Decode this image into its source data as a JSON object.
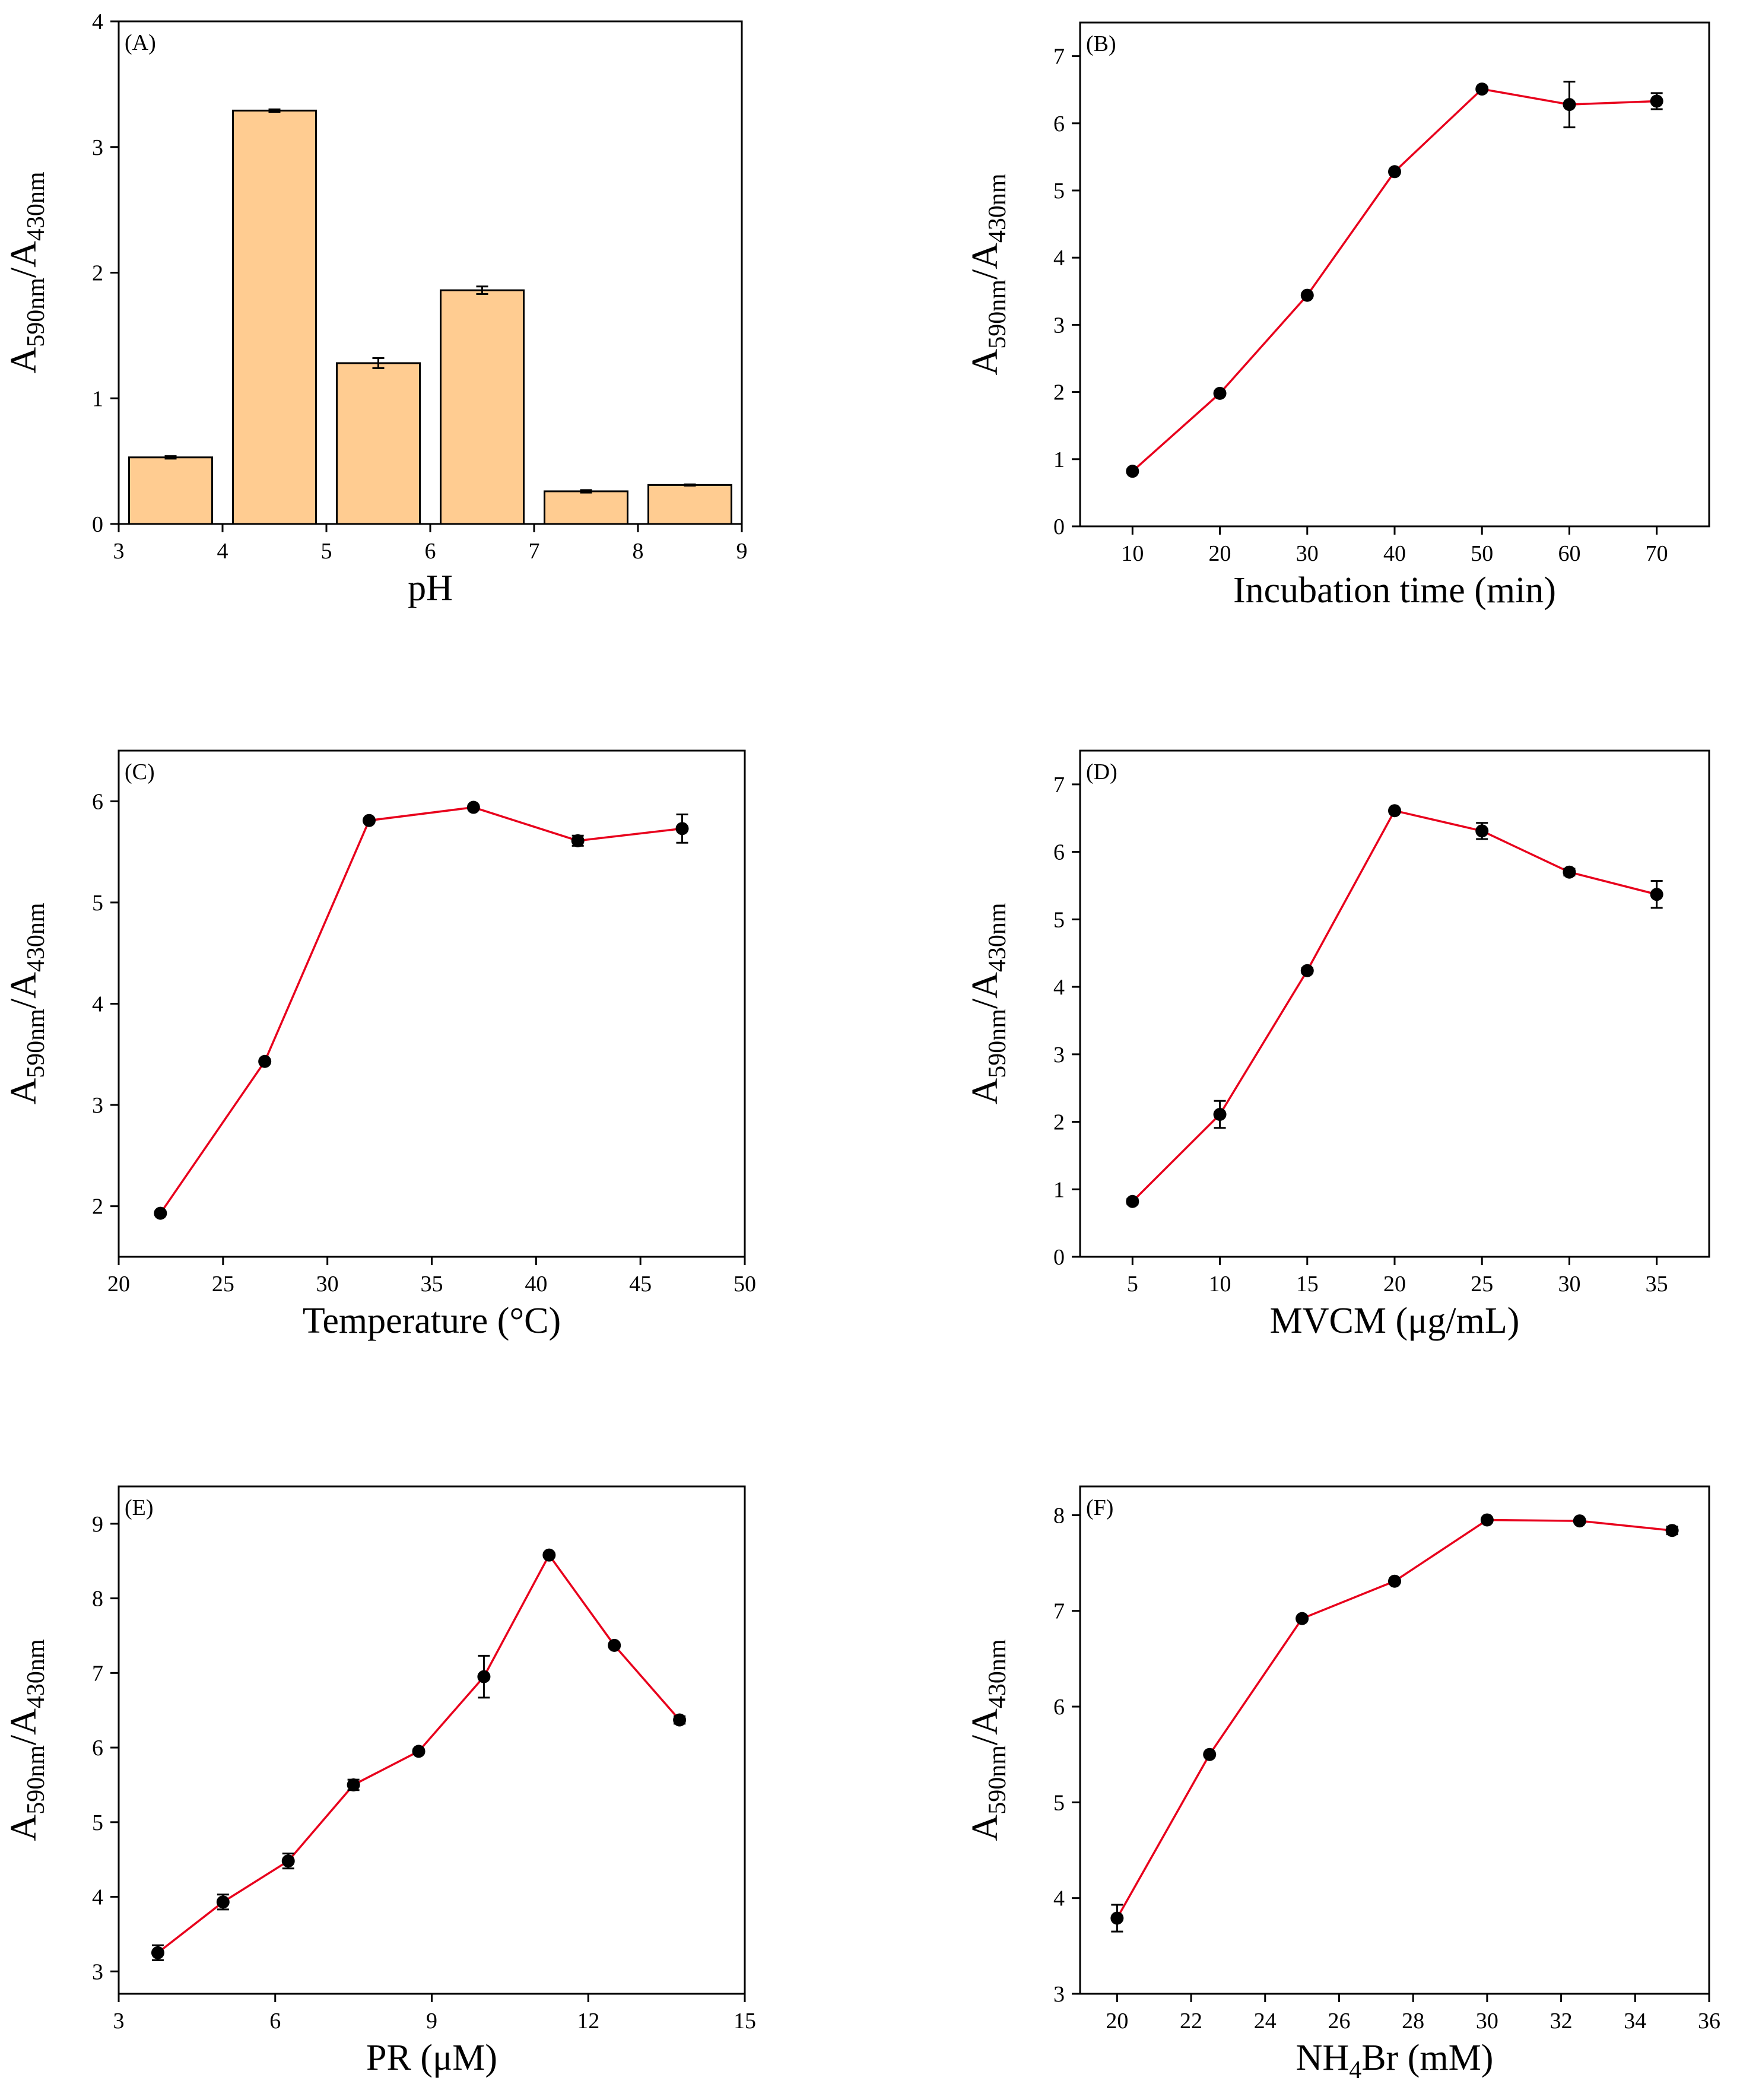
{
  "figure": {
    "y_label": {
      "base1": "A",
      "sub1": "590nm",
      "sep": "/",
      "base2": "A",
      "sub2": "430nm"
    }
  },
  "chart_data": [
    {
      "panel": "(A)",
      "type": "bar",
      "xlabel": "pH",
      "xlim": [
        3,
        9
      ],
      "ylim": [
        0,
        4
      ],
      "xticks": [
        3,
        4,
        5,
        6,
        7,
        8,
        9
      ],
      "yticks": [
        0,
        1,
        2,
        3,
        4
      ],
      "x": [
        3.5,
        4.5,
        5.5,
        6.5,
        7.5,
        8.5
      ],
      "values": [
        0.53,
        3.29,
        1.28,
        1.86,
        0.26,
        0.31
      ],
      "errors": [
        0.01,
        0.01,
        0.04,
        0.03,
        0.01,
        0.005
      ],
      "bar_width": 0.8,
      "bar_color": "#FFCC91"
    },
    {
      "panel": "(B)",
      "type": "line",
      "xlabel": "Incubation time (min)",
      "xlim": [
        4,
        76
      ],
      "ylim": [
        0,
        7.5
      ],
      "xticks": [
        10,
        20,
        30,
        40,
        50,
        60,
        70
      ],
      "yticks": [
        0,
        1,
        2,
        3,
        4,
        5,
        6,
        7
      ],
      "x": [
        10,
        20,
        30,
        40,
        50,
        60,
        70
      ],
      "values": [
        0.82,
        1.98,
        3.44,
        5.28,
        6.51,
        6.28,
        6.33
      ],
      "errors": [
        0.03,
        0.03,
        0.03,
        0.03,
        0.03,
        0.34,
        0.12
      ],
      "line_color": "#E8001C"
    },
    {
      "panel": "(C)",
      "type": "line",
      "xlabel": "Temperature (°C)",
      "xlim": [
        20,
        50
      ],
      "ylim": [
        1.5,
        6.5
      ],
      "xticks": [
        20,
        25,
        30,
        35,
        40,
        45,
        50
      ],
      "yticks": [
        2,
        3,
        4,
        5,
        6
      ],
      "x": [
        22,
        27,
        32,
        37,
        42,
        47
      ],
      "values": [
        1.93,
        3.43,
        5.81,
        5.94,
        5.61,
        5.73
      ],
      "errors": [
        0.02,
        0.02,
        0.02,
        0.02,
        0.05,
        0.14
      ],
      "line_color": "#E8001C"
    },
    {
      "panel": "(D)",
      "type": "line",
      "xlabel": "MVCM (μg/mL)",
      "xlim": [
        2,
        38
      ],
      "ylim": [
        0,
        7.5
      ],
      "xticks": [
        5,
        10,
        15,
        20,
        25,
        30,
        35
      ],
      "yticks": [
        0,
        1,
        2,
        3,
        4,
        5,
        6,
        7
      ],
      "x": [
        5,
        10,
        15,
        20,
        25,
        30,
        35
      ],
      "values": [
        0.82,
        2.11,
        4.24,
        6.61,
        6.31,
        5.7,
        5.37
      ],
      "errors": [
        0.04,
        0.2,
        0.04,
        0.03,
        0.12,
        0.05,
        0.2
      ],
      "line_color": "#E8001C"
    },
    {
      "panel": "(E)",
      "type": "line",
      "xlabel": "PR (μM)",
      "xlim": [
        3,
        15
      ],
      "ylim": [
        2.7,
        9.5
      ],
      "xticks": [
        3,
        6,
        9,
        12,
        15
      ],
      "yticks": [
        3,
        4,
        5,
        6,
        7,
        8,
        9
      ],
      "x": [
        3.75,
        5,
        6.25,
        7.5,
        8.75,
        10,
        11.25,
        12.5,
        13.75
      ],
      "values": [
        3.25,
        3.93,
        4.48,
        5.5,
        5.95,
        6.95,
        8.58,
        7.37,
        6.37
      ],
      "errors": [
        0.1,
        0.1,
        0.1,
        0.07,
        0.03,
        0.28,
        0.03,
        0.03,
        0.05
      ],
      "line_color": "#E8001C"
    },
    {
      "panel": "(F)",
      "type": "line",
      "xlabel": {
        "base": "NH",
        "sub": "4",
        "rest": "Br (mM)"
      },
      "xlim": [
        19,
        36
      ],
      "ylim": [
        3,
        8.3
      ],
      "xticks": [
        20,
        22,
        24,
        26,
        28,
        30,
        32,
        34,
        36
      ],
      "yticks": [
        3,
        4,
        5,
        6,
        7,
        8
      ],
      "x": [
        20,
        22.5,
        25,
        27.5,
        30,
        32.5,
        35
      ],
      "values": [
        3.79,
        5.5,
        6.92,
        7.31,
        7.95,
        7.94,
        7.84
      ],
      "errors": [
        0.14,
        0.02,
        0.02,
        0.02,
        0.02,
        0.02,
        0.04
      ],
      "line_color": "#E8001C"
    }
  ]
}
